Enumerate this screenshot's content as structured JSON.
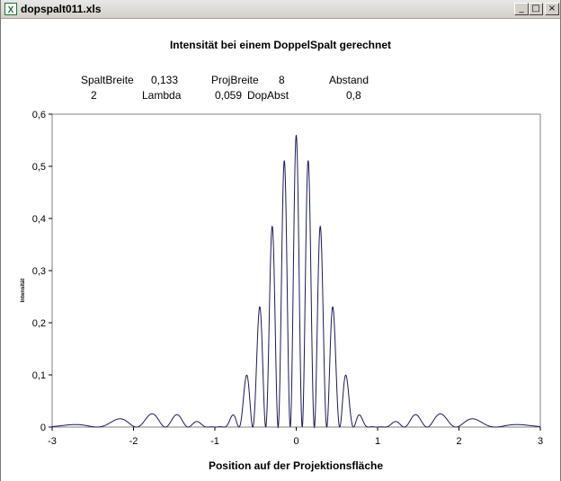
{
  "window": {
    "title": "dopspalt011.xls",
    "minimize_label": "_",
    "maximize_label": "□",
    "close_label": "×"
  },
  "header": {
    "row1": [
      "SpaltBreite",
      "0,133",
      "ProjBreite",
      "8",
      "Abstand"
    ],
    "row2": [
      "2",
      "Lambda",
      "0,059",
      "DopAbst",
      "0,8"
    ]
  },
  "chart_data": {
    "type": "line",
    "title": "Intensität bei einem DoppelSpalt gerechnet",
    "xlabel": "Position auf der Projektionsfläche",
    "ylabel": "Intensität",
    "xlim": [
      -3,
      3
    ],
    "ylim": [
      0,
      0.6
    ],
    "x_ticks": [
      "-3",
      "-2",
      "-1",
      "0",
      "1",
      "2",
      "3"
    ],
    "y_ticks": [
      "0",
      "0,1",
      "0,2",
      "0,3",
      "0,4",
      "0,5",
      "0,6"
    ],
    "params": {
      "spaltbreite": 0.133,
      "projbreite": 8,
      "abstand": 2,
      "lambda": 0.059,
      "dopabst": 0.8,
      "peak": 0.56
    },
    "series": [
      {
        "color": "#1a1a5e"
      }
    ],
    "grid": false,
    "legend": "none"
  }
}
